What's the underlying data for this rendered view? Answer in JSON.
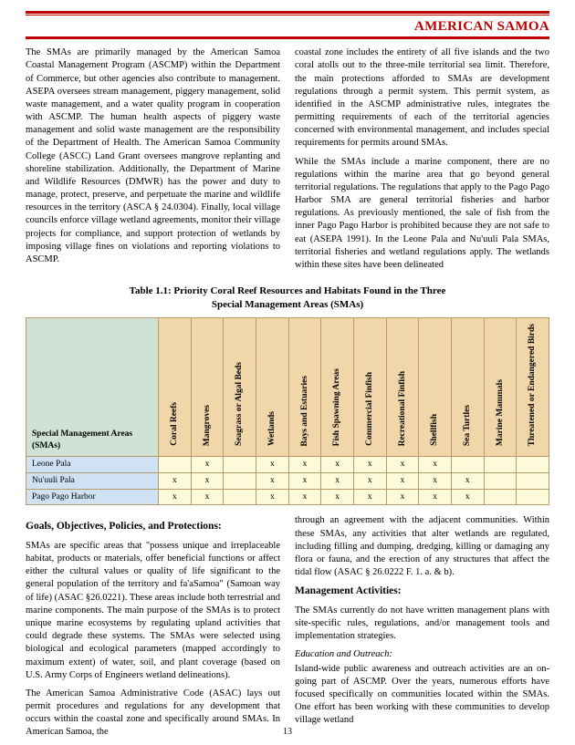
{
  "header": {
    "title": "AMERICAN SAMOA"
  },
  "top": {
    "left": "The SMAs are primarily managed by the American Samoa Coastal Management Program (ASCMP) within the Department of Commerce, but other agencies also contribute to management.  ASEPA oversees stream management, piggery management, solid waste management, and a water quality program in cooperation with ASCMP.  The human health aspects of piggery waste management and solid waste management are the responsibility of the Department of Health.  The American Samoa Community College (ASCC) Land Grant oversees mangrove replanting and shoreline stabilization.  Additionally, the Department of Marine and Wildlife Resources (DMWR) has the power and duty to manage, protect, preserve, and perpetuate the marine and wildlife resources in the territory (ASCA § 24.0304).  Finally, local village councils enforce village wetland agreements, monitor their village projects for compliance, and support protection of wetlands by imposing village fines on violations and reporting violations to ASCMP.",
    "right_p1": "coastal zone includes the entirety of all five islands and the two coral atolls out to the three-mile territorial sea limit.  Therefore, the main protections afforded to SMAs are development regulations through a permit system.  This permit system, as identified in the ASCMP administrative rules, integrates the permitting requirements of each of the territorial agencies concerned with environmental management, and includes special requirements for permits around SMAs.",
    "right_p2": "While the SMAs include a marine component, there are no regulations within the marine area that go beyond general territorial regulations.  The regulations that apply to the Pago Pago Harbor SMA are general territorial fisheries and harbor regulations.  As previously mentioned, the sale of fish from the inner Pago Pago Harbor is prohibited because they are not safe to eat (ASEPA 1991).  In the Leone Pala and Nu'uuli Pala SMAs, territorial fisheries and wetland regulations apply.  The wetlands within these sites have been delineated"
  },
  "table": {
    "caption_l1": "Table 1.1: Priority Coral Reef Resources and Habitats Found in the Three",
    "caption_l2": "Special Management Areas (SMAs)",
    "row_header": "Special Management Areas (SMAs)",
    "columns": [
      "Coral Reefs",
      "Mangroves",
      "Seagrass or Algal Beds",
      "Wetlands",
      "Bays and Estuaries",
      "Fish Spawning Areas",
      "Commercial Finfish",
      "Recreational Finfish",
      "Shellfish",
      "Sea Turtles",
      "Marine Mammals",
      "Threatened or Endangered Birds"
    ],
    "rows": [
      {
        "name": "Leone Pala",
        "cells": [
          "",
          "x",
          "",
          "x",
          "x",
          "x",
          "x",
          "x",
          "x",
          "",
          "",
          ""
        ]
      },
      {
        "name": "Nu'uuli Pala",
        "cells": [
          "x",
          "x",
          "",
          "x",
          "x",
          "x",
          "x",
          "x",
          "x",
          "x",
          "",
          ""
        ]
      },
      {
        "name": "Pago Pago Harbor",
        "cells": [
          "x",
          "x",
          "",
          "x",
          "x",
          "x",
          "x",
          "x",
          "x",
          "x",
          "",
          ""
        ]
      }
    ],
    "colors": {
      "border": "#b89b6b",
      "header_row_bg": "#cfe2d5",
      "header_col_bg": "#f0d6a8",
      "rowname_bg": "#cfe2f3",
      "cell_bg": "#fdfbd9"
    }
  },
  "bottom": {
    "left_head": "Goals, Objectives, Policies, and Protections:",
    "left_p1": "SMAs are specific areas that \"possess unique and irreplaceable habitat, products or materials, offer beneficial functions or affect either the cultural values or quality of life significant to the general population of the territory and fa'aSamoa\" (Samoan way of life) (ASAC §26.0221).  These areas include both terrestrial and marine components.  The main purpose of the SMAs is to protect unique marine ecosystems by regulating upland activities that could degrade these systems.  The SMAs were selected using biological and ecological parameters (mapped accordingly to maximum extent) of water, soil, and plant coverage (based on U.S. Army Corps of Engineers wetland delineations).",
    "left_p2": "The American Samoa Administrative Code (ASAC) lays out permit procedures and regulations for any development that occurs within the coastal zone and specifically around SMAs.  In American Samoa, the",
    "right_p1": "through an agreement with the adjacent communities.  Within these SMAs, any activities that alter wetlands are regulated, including filling and dumping, dredging, killing or damaging any flora or fauna, and the erection of any structures that affect the tidal flow (ASAC § 26.0222 F. 1. a. & b).",
    "right_head": "Management Activities:",
    "right_p2": "The SMAs currently do not have written management plans with site-specific rules, regulations, and/or management tools and implementation strategies.",
    "right_sub": "Education and Outreach:",
    "right_p3": "Island-wide public awareness and outreach activities are an on-going part of ASCMP.  Over the years, numerous efforts have focused specifically on communities located within the SMAs.  One effort has been working with these communities to develop village wetland"
  },
  "pagenum": "13"
}
